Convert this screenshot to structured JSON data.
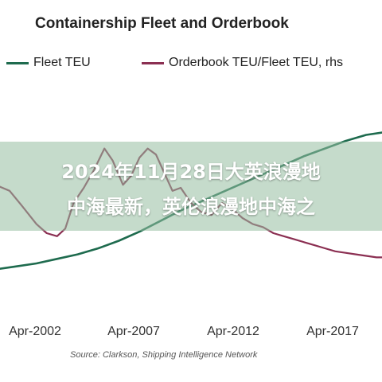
{
  "chart_data": {
    "type": "line",
    "title": "Containership Fleet and Orderbook",
    "x_tick_labels": [
      "Apr-2002",
      "Apr-2007",
      "Apr-2012",
      "Apr-2017"
    ],
    "source": "Source: Clarkson, Shipping Intelligence Network",
    "grid": false,
    "legend": "top",
    "series": [
      {
        "name": "Fleet TEU",
        "color": "#1e6b4e",
        "x": [
          2000.0,
          2001.0,
          2002.0,
          2003.0,
          2004.0,
          2005.0,
          2006.0,
          2007.0,
          2008.0,
          2009.0,
          2010.0,
          2011.0,
          2012.0,
          2013.0,
          2014.0,
          2015.0,
          2016.0,
          2017.0,
          2018.0,
          2019.0
        ],
        "values": [
          0.06,
          0.08,
          0.1,
          0.13,
          0.16,
          0.2,
          0.25,
          0.31,
          0.38,
          0.45,
          0.51,
          0.57,
          0.63,
          0.69,
          0.75,
          0.81,
          0.86,
          0.91,
          0.95,
          0.97
        ]
      },
      {
        "name": "Orderbook TEU/Fleet TEU, rhs",
        "color": "#8b2f52",
        "x": [
          2000.0,
          2000.7,
          2001.3,
          2002.0,
          2002.5,
          2003.0,
          2003.4,
          2003.8,
          2004.3,
          2004.8,
          2005.3,
          2005.7,
          2006.2,
          2006.6,
          2007.0,
          2007.4,
          2007.8,
          2008.2,
          2008.6,
          2009.0,
          2009.5,
          2010.0,
          2010.5,
          2011.0,
          2011.5,
          2012.0,
          2012.5,
          2013.0,
          2013.5,
          2014.0,
          2014.5,
          2015.0,
          2015.5,
          2016.0,
          2016.5,
          2017.0,
          2017.5,
          2018.0,
          2018.5,
          2019.0
        ],
        "values": [
          0.62,
          0.58,
          0.48,
          0.36,
          0.3,
          0.28,
          0.33,
          0.5,
          0.6,
          0.72,
          0.86,
          0.78,
          0.62,
          0.68,
          0.8,
          0.86,
          0.82,
          0.7,
          0.58,
          0.6,
          0.5,
          0.44,
          0.42,
          0.5,
          0.46,
          0.4,
          0.36,
          0.34,
          0.3,
          0.28,
          0.26,
          0.24,
          0.22,
          0.2,
          0.18,
          0.17,
          0.16,
          0.15,
          0.14,
          0.14
        ]
      }
    ]
  },
  "banner": {
    "line1": "2024年11月28日大英浪漫地",
    "line2": "中海最新，英伦浪漫地中海之"
  }
}
